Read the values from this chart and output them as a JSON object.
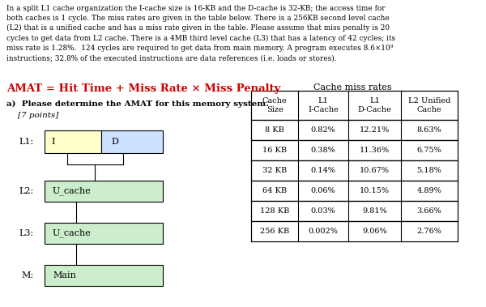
{
  "title_text": "In a split L1 cache organization the I-cache size is 16-KB and the D-cache is 32-KB; the access time for\nboth caches is 1 cycle. The miss rates are given in the table below. There is a 256KB second level cache\n(L2) that is a unified cache and has a miss rate given in the table. Please assume that miss penalty is 20\ncycles to get data from L2 cache. There is a 4MB third level cache (L3) that has a latency of 42 cycles; its\nmiss rate is 1.28%.  124 cycles are required to get data from main memory. A program executes 8.6×10⁹\ninstructions; 32.8% of the executed instructions are data references (i.e. loads or stores).",
  "amat_formula": "AMAT = Hit Time + Miss Rate × Miss Penalty",
  "cache_miss_rates_title": "Cache miss rates",
  "question_bold": "a)  Please determine the AMAT for this memory system.",
  "points_text": "[7 points]",
  "table_headers": [
    "Cache\nSize",
    "L1\nI-Cache",
    "L1\nD-Cache",
    "L2 Unified\nCache"
  ],
  "table_rows": [
    [
      "8 KB",
      "0.82%",
      "12.21%",
      "8.63%"
    ],
    [
      "16 KB",
      "0.38%",
      "11.36%",
      "6.75%"
    ],
    [
      "32 KB",
      "0.14%",
      "10.67%",
      "5.18%"
    ],
    [
      "64 KB",
      "0.06%",
      "10.15%",
      "4.89%"
    ],
    [
      "128 KB",
      "0.03%",
      "9.81%",
      "3.66%"
    ],
    [
      "256 KB",
      "0.002%",
      "9.06%",
      "2.76%"
    ]
  ],
  "diagram_labels": {
    "L1": "L1:",
    "L1_I": "I",
    "L1_D": "D",
    "L2": "L2:",
    "L2_box": "U_cache",
    "L3": "L3:",
    "L3_box": "U_cache",
    "M": "M:",
    "M_box": "Main"
  },
  "colors": {
    "background": "#ffffff",
    "amat_text": "#cc0000",
    "table_border": "#000000",
    "L1_I_fill": "#ffffcc",
    "L1_D_fill": "#cce0ff",
    "L2_fill": "#cceecc",
    "L3_fill": "#cceecc",
    "M_fill": "#cceecc",
    "box_edge": "#000000",
    "text_main": "#000000"
  },
  "fig_width": 6.0,
  "fig_height": 3.79,
  "dpi": 100
}
